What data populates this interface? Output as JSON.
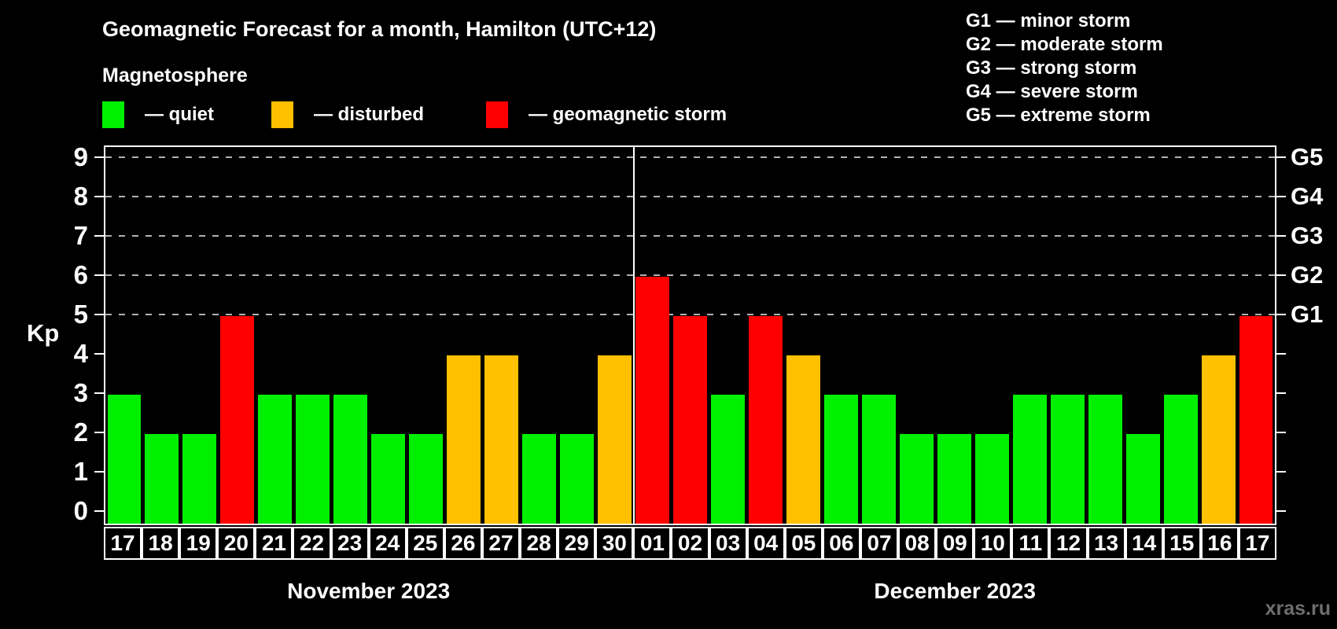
{
  "page": {
    "title": "Geomagnetic Forecast for a month, Hamilton (UTC+12)",
    "subtitle": "Magnetosphere",
    "watermark": "xras.ru"
  },
  "legend": {
    "items": [
      {
        "label": "— quiet",
        "status": "quiet",
        "color": "#00f000"
      },
      {
        "label": "— disturbed",
        "status": "disturbed",
        "color": "#ffc000"
      },
      {
        "label": "— geomagnetic storm",
        "status": "storm",
        "color": "#ff0000"
      }
    ]
  },
  "g_legend": {
    "items": [
      "G1 — minor storm",
      "G2 — moderate storm",
      "G3 — strong storm",
      "G4 — severe storm",
      "G5 — extreme storm"
    ]
  },
  "chart_data": {
    "type": "bar",
    "title": "Geomagnetic Forecast for a month, Hamilton (UTC+12)",
    "xlabel": "",
    "ylabel": "Kp",
    "ylim": [
      0,
      9
    ],
    "y_ticks": [
      "0",
      "1",
      "2",
      "3",
      "4",
      "5",
      "6",
      "7",
      "8",
      "9"
    ],
    "gridlines_at": [
      5,
      6,
      7,
      8,
      9
    ],
    "grid": "dashed horizontal lines at storm levels only",
    "legend_position": "top",
    "right_axis": [
      {
        "label": "G5",
        "kp": 9
      },
      {
        "label": "G4",
        "kp": 8
      },
      {
        "label": "G3",
        "kp": 7
      },
      {
        "label": "G2",
        "kp": 6
      },
      {
        "label": "G1",
        "kp": 5
      }
    ],
    "status_colors": {
      "quiet": "#00f000",
      "disturbed": "#ffc000",
      "storm": "#ff0000"
    },
    "months": [
      {
        "label": "November 2023",
        "days": [
          {
            "day": "17",
            "kp": 3,
            "status": "quiet"
          },
          {
            "day": "18",
            "kp": 2,
            "status": "quiet"
          },
          {
            "day": "19",
            "kp": 2,
            "status": "quiet"
          },
          {
            "day": "20",
            "kp": 5,
            "status": "storm"
          },
          {
            "day": "21",
            "kp": 3,
            "status": "quiet"
          },
          {
            "day": "22",
            "kp": 3,
            "status": "quiet"
          },
          {
            "day": "23",
            "kp": 3,
            "status": "quiet"
          },
          {
            "day": "24",
            "kp": 2,
            "status": "quiet"
          },
          {
            "day": "25",
            "kp": 2,
            "status": "quiet"
          },
          {
            "day": "26",
            "kp": 4,
            "status": "disturbed"
          },
          {
            "day": "27",
            "kp": 4,
            "status": "disturbed"
          },
          {
            "day": "28",
            "kp": 2,
            "status": "quiet"
          },
          {
            "day": "29",
            "kp": 2,
            "status": "quiet"
          },
          {
            "day": "30",
            "kp": 4,
            "status": "disturbed"
          }
        ]
      },
      {
        "label": "December 2023",
        "days": [
          {
            "day": "01",
            "kp": 6,
            "status": "storm"
          },
          {
            "day": "02",
            "kp": 5,
            "status": "storm"
          },
          {
            "day": "03",
            "kp": 3,
            "status": "quiet"
          },
          {
            "day": "04",
            "kp": 5,
            "status": "storm"
          },
          {
            "day": "05",
            "kp": 4,
            "status": "disturbed"
          },
          {
            "day": "06",
            "kp": 3,
            "status": "quiet"
          },
          {
            "day": "07",
            "kp": 3,
            "status": "quiet"
          },
          {
            "day": "08",
            "kp": 2,
            "status": "quiet"
          },
          {
            "day": "09",
            "kp": 2,
            "status": "quiet"
          },
          {
            "day": "10",
            "kp": 2,
            "status": "quiet"
          },
          {
            "day": "11",
            "kp": 3,
            "status": "quiet"
          },
          {
            "day": "12",
            "kp": 3,
            "status": "quiet"
          },
          {
            "day": "13",
            "kp": 3,
            "status": "quiet"
          },
          {
            "day": "14",
            "kp": 2,
            "status": "quiet"
          },
          {
            "day": "15",
            "kp": 3,
            "status": "quiet"
          },
          {
            "day": "16",
            "kp": 4,
            "status": "disturbed"
          },
          {
            "day": "17",
            "kp": 5,
            "status": "storm"
          }
        ]
      }
    ]
  }
}
